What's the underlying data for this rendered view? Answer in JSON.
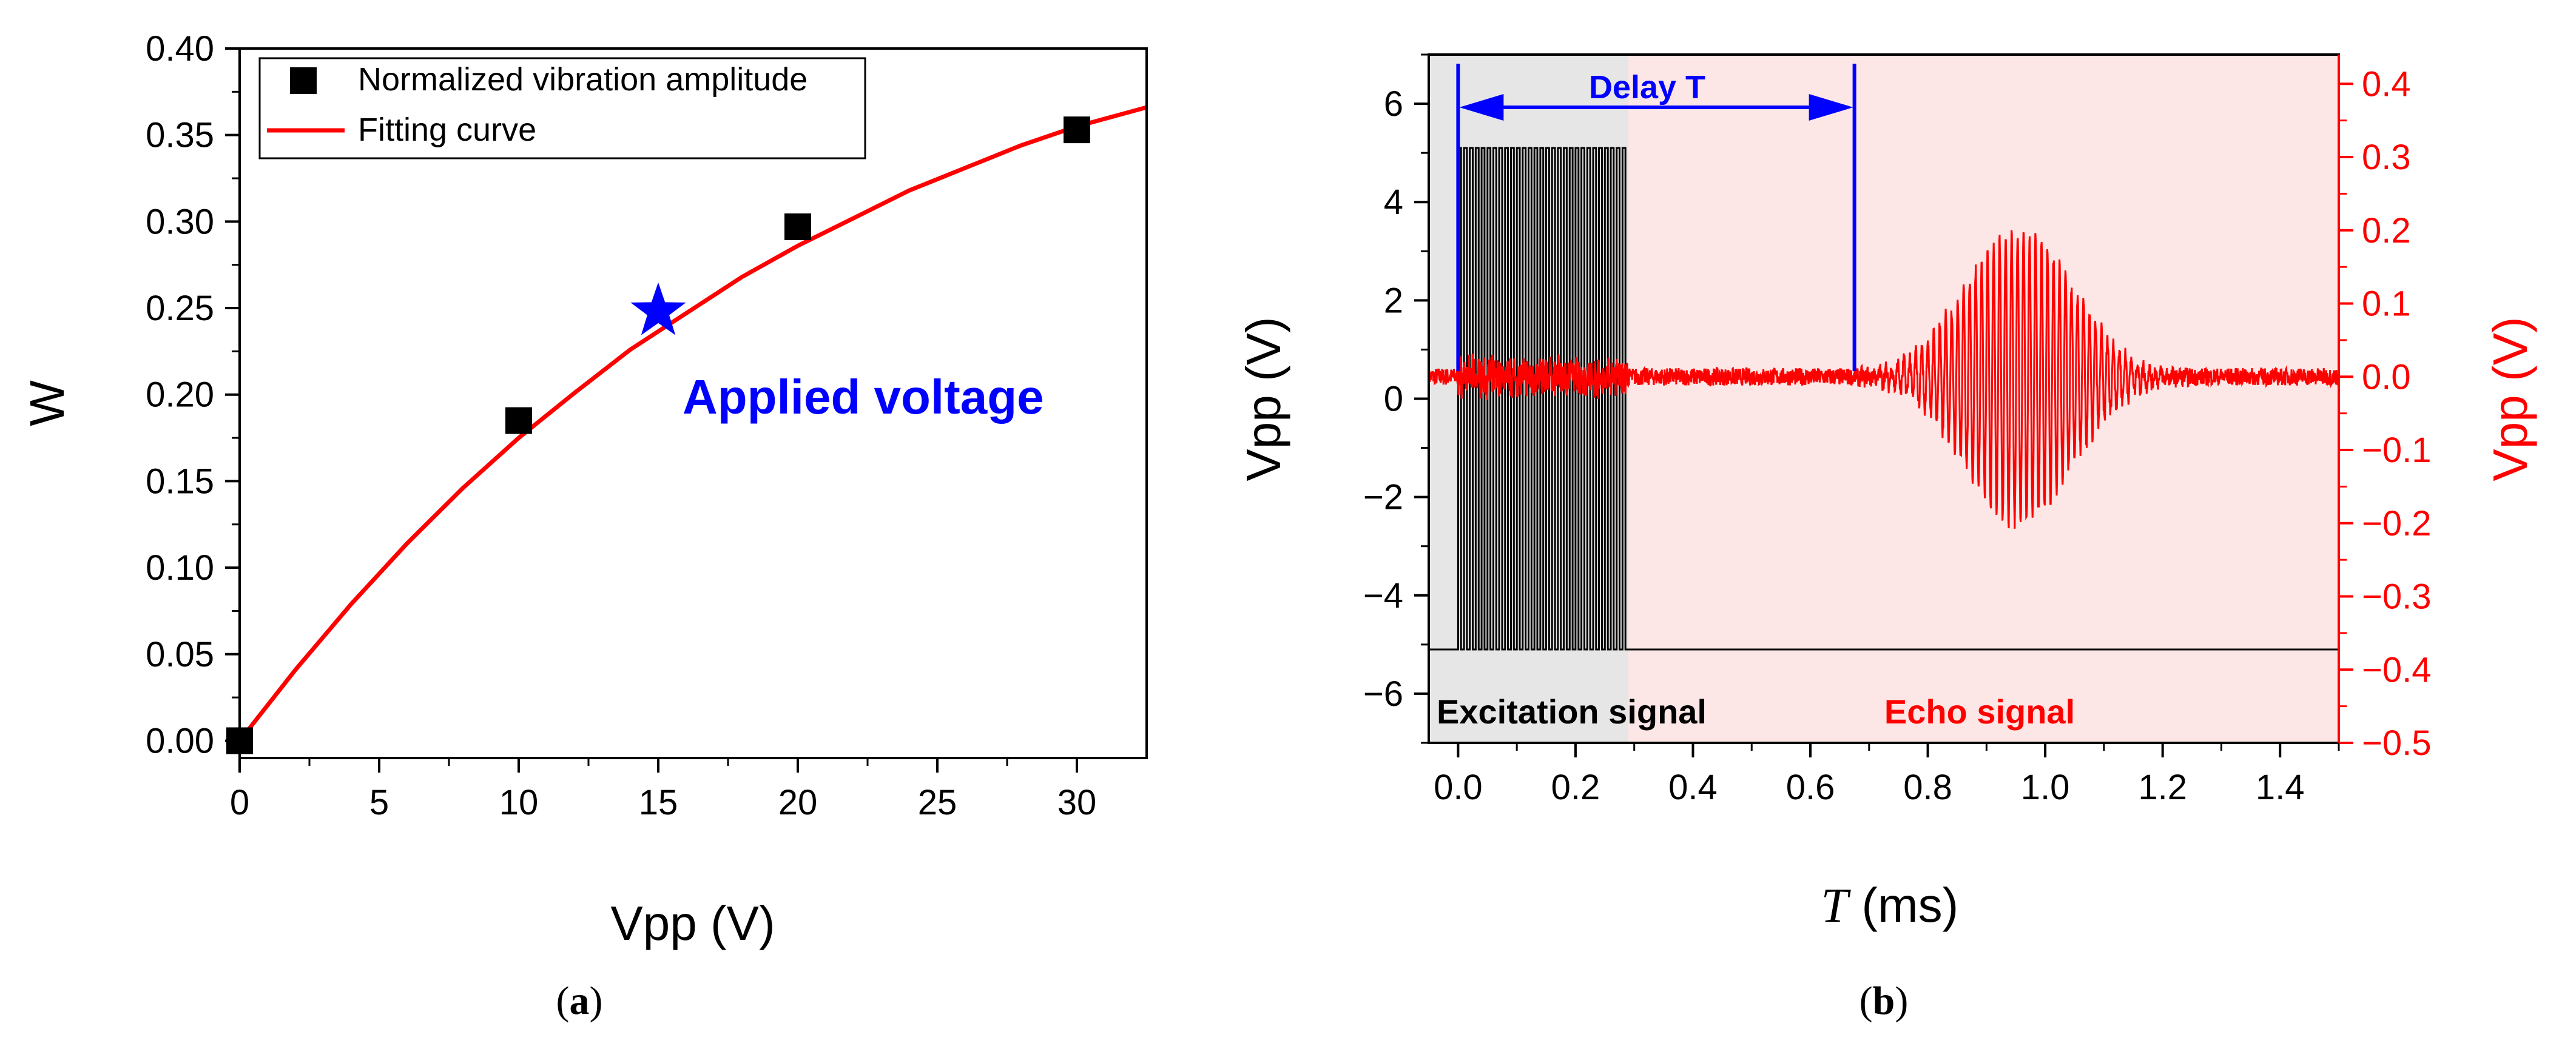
{
  "chart_data": [
    {
      "id": "a",
      "panel_label": "a",
      "type": "scatter",
      "xlabel": "Vpp (V)",
      "ylabel": "W",
      "xlim": [
        0,
        32.5
      ],
      "ylim": [
        -0.01,
        0.4
      ],
      "xticks": [
        0,
        5,
        10,
        15,
        20,
        25,
        30
      ],
      "yticks": [
        0.0,
        0.05,
        0.1,
        0.15,
        0.2,
        0.25,
        0.3,
        0.35,
        0.4
      ],
      "series": [
        {
          "name": "Normalized vibration amplitude",
          "kind": "markers",
          "marker": "square",
          "color": "#000000",
          "x": [
            0,
            10,
            20,
            30
          ],
          "y": [
            0.0,
            0.185,
            0.297,
            0.353
          ]
        },
        {
          "name": "Fitting curve",
          "kind": "line",
          "color": "#ff0000",
          "x": [
            0,
            2,
            4,
            6,
            8,
            10,
            12,
            14,
            16,
            18,
            20,
            22,
            24,
            26,
            28,
            30,
            32.5
          ],
          "y": [
            0.0,
            0.041,
            0.079,
            0.114,
            0.146,
            0.175,
            0.201,
            0.226,
            0.247,
            0.268,
            0.286,
            0.302,
            0.318,
            0.331,
            0.344,
            0.355,
            0.366
          ]
        }
      ],
      "highlight": {
        "x": 15,
        "y": 0.248,
        "marker": "star",
        "color": "#0000ff",
        "label": "Applied voltage"
      },
      "legend_position": "top-left"
    },
    {
      "id": "b",
      "panel_label": "b",
      "type": "line",
      "xlabel_italic": "T",
      "xlabel_rest": " (ms)",
      "ylabel_left": "Vpp (V)",
      "ylabel_right": "Vpp (V)",
      "xlim": [
        -0.05,
        1.5
      ],
      "ylim_left": [
        -7,
        7
      ],
      "ylim_right": [
        -0.5,
        0.44
      ],
      "xticks": [
        0.0,
        0.2,
        0.4,
        0.6,
        0.8,
        1.0,
        1.2,
        1.4
      ],
      "xtick_labels": [
        "0.0",
        "0.2",
        "0.4",
        "0.6",
        "0.8",
        "1.0",
        "1.2",
        "1.4"
      ],
      "yticks_left": [
        6,
        4,
        2,
        0,
        -2,
        -4,
        -6
      ],
      "yticks_left_labels": [
        "6",
        "4",
        "2",
        "0",
        "−2",
        "−4",
        "−6"
      ],
      "yticks_right": [
        0.4,
        0.3,
        0.2,
        0.1,
        0.0,
        -0.1,
        -0.2,
        -0.3,
        -0.4,
        -0.5
      ],
      "yticks_right_labels": [
        "0.4",
        "0.3",
        "0.2",
        "0.1",
        "0.0",
        "−0.1",
        "−0.2",
        "−0.3",
        "−0.4",
        "−0.5"
      ],
      "right_axis_color": "#ff0000",
      "regions": [
        {
          "name": "Excitation signal",
          "x_start": -0.05,
          "x_end": 0.29,
          "fill": "#e6e6e6",
          "label_color": "#000000"
        },
        {
          "name": "Echo signal",
          "x_start": 0.29,
          "x_end": 1.5,
          "fill": "#fde6e6",
          "label_color": "#ff0000"
        }
      ],
      "series": [
        {
          "name": "Excitation signal",
          "axis": "left",
          "color": "#000000",
          "burst_start": 0.0,
          "burst_end": 0.29,
          "burst_high": 5.1,
          "baseline": -5.1,
          "cycles": 29
        },
        {
          "name": "Echo signal",
          "axis": "right",
          "color": "#ff0000",
          "noise_amplitude": 0.012,
          "echo_start": 0.675,
          "echo_center": 0.955,
          "echo_end": 1.25,
          "echo_peak": 0.2,
          "period_ms": 0.0102
        }
      ],
      "annotation": {
        "label": "Delay T",
        "x_start": 0.0,
        "x_end": 0.675,
        "color": "#0000ff"
      }
    }
  ]
}
